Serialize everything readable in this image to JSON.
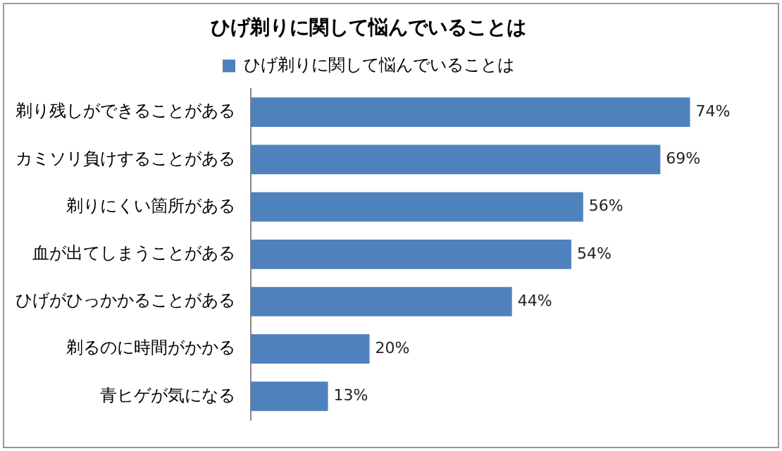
{
  "chart_data": {
    "type": "bar",
    "orientation": "horizontal",
    "title": "ひげ剃りに関して悩んでいることは",
    "categories": [
      "剃り残しができることがある",
      "カミソリ負けすることがある",
      "剃りにくい箇所がある",
      "血が出てしまうことがある",
      "ひげがひっかかることがある",
      "剃るのに時間がかかる",
      "青ヒゲが気になる"
    ],
    "series": [
      {
        "name": "ひげ剃りに関して悩んでいることは",
        "color": "#4f81bd",
        "values": [
          74,
          69,
          56,
          54,
          44,
          20,
          13
        ],
        "value_labels": [
          "74%",
          "69%",
          "56%",
          "54%",
          "44%",
          "20%",
          "13%"
        ]
      }
    ],
    "legend": "top",
    "tick_labels": "y"
  }
}
